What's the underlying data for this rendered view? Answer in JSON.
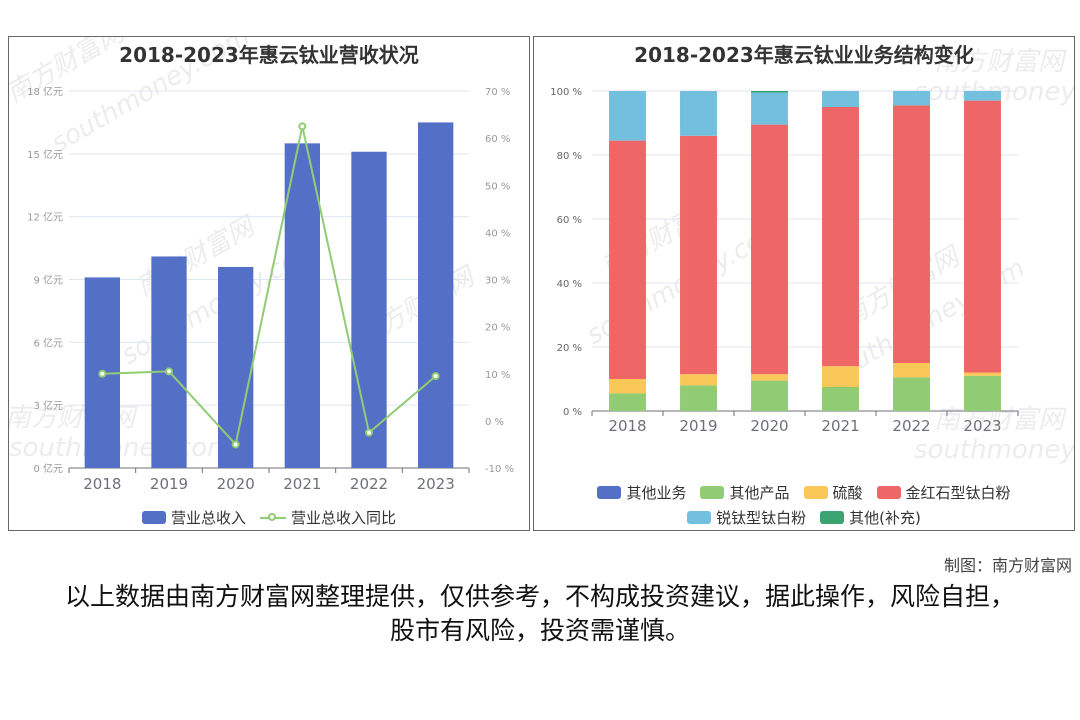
{
  "left": {
    "title": "2018-2023年惠云钛业营收状况",
    "legend": [
      {
        "label": "营业总收入",
        "color": "#5470c6"
      },
      {
        "label": "营业总收入同比",
        "color": "#91cc75"
      }
    ]
  },
  "right": {
    "title": "2018-2023年惠云钛业业务结构变化",
    "legend_rows": [
      [
        {
          "label": "其他业务",
          "color": "#5470c6"
        },
        {
          "label": "其他产品",
          "color": "#91cc75"
        },
        {
          "label": "硫酸",
          "color": "#fac858"
        },
        {
          "label": "金红石型钛白粉",
          "color": "#ee6666"
        }
      ],
      [
        {
          "label": "锐钛型钛白粉",
          "color": "#73c0de"
        },
        {
          "label": "其他(补充)",
          "color": "#3ba272"
        }
      ]
    ]
  },
  "watermark": {
    "cn": "南方财富网",
    "en": "southmoney.com"
  },
  "credit": "制图：南方财富网",
  "disclaimer": "以上数据由南方财富网整理提供，仅供参考，不构成投资建议，据此操作，风险自担，股市有风险，投资需谨慎。",
  "chart_data": [
    {
      "type": "bar",
      "title": "2018-2023年惠云钛业营收状况",
      "categories": [
        "2018",
        "2019",
        "2020",
        "2021",
        "2022",
        "2023"
      ],
      "y_left": {
        "ticks": [
          "0 亿元",
          "3 亿元",
          "6 亿元",
          "9 亿元",
          "12 亿元",
          "15 亿元",
          "18 亿元"
        ],
        "lim": [
          0,
          18
        ]
      },
      "y_right": {
        "ticks": [
          "-10 %",
          "0 %",
          "10 %",
          "20 %",
          "30 %",
          "40 %",
          "50 %",
          "60 %",
          "70 %"
        ],
        "lim": [
          -10,
          70
        ]
      },
      "series": [
        {
          "name": "营业总收入",
          "type": "bar",
          "axis": "left",
          "values": [
            9.1,
            10.1,
            9.6,
            15.5,
            15.1,
            16.5
          ]
        },
        {
          "name": "营业总收入同比",
          "type": "line",
          "axis": "right",
          "values": [
            10.0,
            10.5,
            -5.0,
            62.5,
            -2.5,
            9.5
          ]
        }
      ]
    },
    {
      "type": "bar",
      "stacked": true,
      "title": "2018-2023年惠云钛业业务结构变化",
      "categories": [
        "2018",
        "2019",
        "2020",
        "2021",
        "2022",
        "2023"
      ],
      "y": {
        "ticks": [
          "0 %",
          "20 %",
          "40 %",
          "60 %",
          "80 %",
          "100 %"
        ],
        "lim": [
          0,
          100
        ]
      },
      "series": [
        {
          "name": "其他业务",
          "values": [
            0,
            0,
            0,
            0,
            0,
            0
          ]
        },
        {
          "name": "其他产品",
          "values": [
            5.5,
            8.0,
            9.5,
            7.5,
            10.5,
            11.0
          ]
        },
        {
          "name": "硫酸",
          "values": [
            4.5,
            3.5,
            2.0,
            6.5,
            4.5,
            1.0
          ]
        },
        {
          "name": "金红石型钛白粉",
          "values": [
            74.5,
            74.5,
            78.0,
            81.0,
            80.5,
            85.0
          ]
        },
        {
          "name": "锐钛型钛白粉",
          "values": [
            15.5,
            14.0,
            10.0,
            5.0,
            4.5,
            3.0
          ]
        },
        {
          "name": "其他(补充)",
          "values": [
            0,
            0,
            0.5,
            0,
            0,
            0
          ]
        }
      ]
    }
  ]
}
